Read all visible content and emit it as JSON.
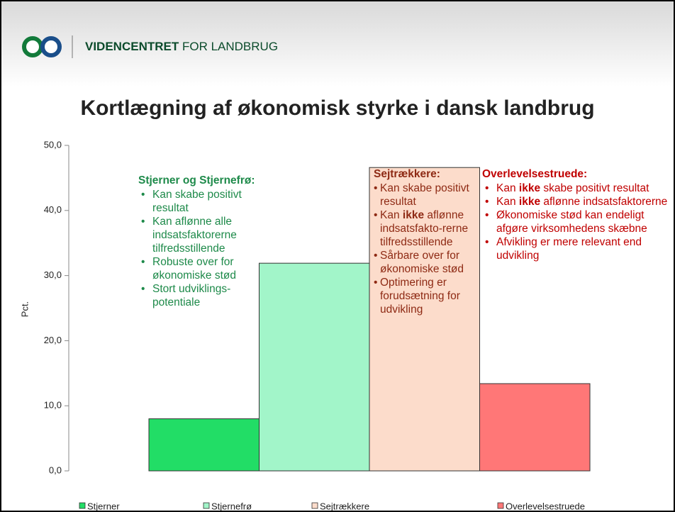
{
  "header": {
    "brand_bold": "VIDENCENTRET",
    "brand_rest": "FOR LANDBRUG"
  },
  "chart_data": {
    "type": "bar",
    "title": "Kortlægning af økonomisk styrke i dansk landbrug",
    "ylabel": "Pct.",
    "ylim": [
      0,
      50
    ],
    "yticks": [
      {
        "value": 0,
        "label": "0,0"
      },
      {
        "value": 10,
        "label": "10,0"
      },
      {
        "value": 20,
        "label": "20,0"
      },
      {
        "value": 30,
        "label": "30,0"
      },
      {
        "value": 40,
        "label": "40,0"
      },
      {
        "value": 50,
        "label": "50,0"
      }
    ],
    "series": [
      {
        "name": "Stjerner",
        "color": "#22dd66",
        "values": [
          8.0
        ]
      },
      {
        "name": "Stjernefrø",
        "color": "#a2f5c9",
        "values": [
          31.9
        ]
      },
      {
        "name": "Sejtrækkere",
        "color": "#fcdccb",
        "values": [
          46.6
        ]
      },
      {
        "name": "Overlevelsestruede",
        "color": "#ff7777",
        "values": [
          13.4
        ]
      }
    ],
    "legend": "bottom",
    "annotations": [
      {
        "title": "Stjerner og Stjernefrø:",
        "color": "#1e8a4a",
        "items": [
          [
            "Kan skabe positivt resultat"
          ],
          [
            "Kan aflønne alle indsatsfaktorerne tilfredsstillende"
          ],
          [
            "Robuste over for økonomiske stød"
          ],
          [
            "Stort udviklings-potentiale"
          ]
        ]
      },
      {
        "title": "Sejtrækkere:",
        "color": "#8e2a14",
        "items": [
          [
            "Kan skabe positivt resultat"
          ],
          [
            "Kan ",
            "ikke",
            " aflønne indsatsfakto-rerne tilfredsstillende"
          ],
          [
            "Sårbare over for økonomiske stød"
          ],
          [
            "Optimering er forudsætning for udvikling"
          ]
        ]
      },
      {
        "title": "Overlevelsestruede:",
        "color": "#c00000",
        "items": [
          [
            "Kan ",
            "ikke",
            " skabe positivt resultat"
          ],
          [
            "Kan ",
            "ikke",
            " aflønne indsatsfaktorerne"
          ],
          [
            "Økonomiske stød kan endeligt afgøre virksomhedens skæbne"
          ],
          [
            "Afvikling er mere relevant end udvikling"
          ]
        ]
      }
    ]
  }
}
